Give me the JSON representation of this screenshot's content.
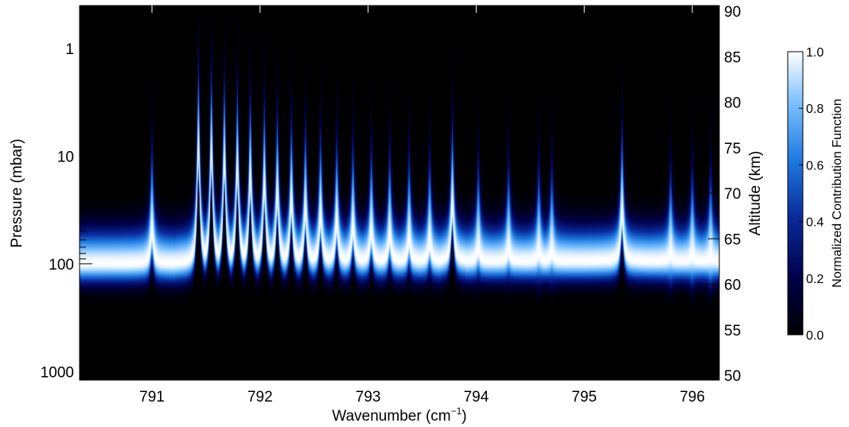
{
  "chart_data": {
    "type": "heatmap",
    "xlabel_main": "Wavenumber (cm",
    "xlabel_sup": "−1",
    "xlabel_close": ")",
    "ylabel_left": "Pressure (mbar)",
    "ylabel_right": "Altitude (km)",
    "colorbar_label": "Normalized Contribution Function",
    "xlim": [
      790.33,
      796.25
    ],
    "x_ticks": [
      "791",
      "792",
      "793",
      "794",
      "795",
      "796"
    ],
    "x_tick_values": [
      791,
      792,
      793,
      794,
      795,
      796
    ],
    "pressure_ticks": [
      "1",
      "10",
      "100",
      "1000"
    ],
    "pressure_tick_values": [
      1,
      10,
      100,
      1000
    ],
    "pressure_scale": "log",
    "pressure_range": [
      0.4,
      1200
    ],
    "altitude_ticks": [
      "90",
      "85",
      "80",
      "75",
      "70",
      "65",
      "60",
      "55",
      "50"
    ],
    "altitude_tick_values": [
      90,
      85,
      80,
      75,
      70,
      65,
      60,
      55,
      50
    ],
    "colorbar_ticks": [
      "1.0",
      "0.8",
      "0.6",
      "0.4",
      "0.2",
      "0.0"
    ],
    "colorbar_tick_values": [
      1.0,
      0.8,
      0.6,
      0.4,
      0.2,
      0.0
    ],
    "colormap": [
      "#000000",
      "#00004a",
      "#0a2c9c",
      "#1e7be0",
      "#7cc0ff",
      "#ffffff"
    ],
    "background_peak_pressure": 95,
    "spectral_lines": [
      {
        "x": 791.0,
        "peak_pressure": 50
      },
      {
        "x": 791.43,
        "peak_pressure": 9
      },
      {
        "x": 791.55,
        "peak_pressure": 10
      },
      {
        "x": 791.67,
        "peak_pressure": 12
      },
      {
        "x": 791.79,
        "peak_pressure": 14
      },
      {
        "x": 791.91,
        "peak_pressure": 17
      },
      {
        "x": 792.04,
        "peak_pressure": 20
      },
      {
        "x": 792.16,
        "peak_pressure": 24
      },
      {
        "x": 792.29,
        "peak_pressure": 28
      },
      {
        "x": 792.42,
        "peak_pressure": 33
      },
      {
        "x": 792.56,
        "peak_pressure": 38
      },
      {
        "x": 792.71,
        "peak_pressure": 43
      },
      {
        "x": 792.86,
        "peak_pressure": 48
      },
      {
        "x": 793.03,
        "peak_pressure": 53
      },
      {
        "x": 793.2,
        "peak_pressure": 58
      },
      {
        "x": 793.38,
        "peak_pressure": 62
      },
      {
        "x": 793.57,
        "peak_pressure": 66
      },
      {
        "x": 793.78,
        "peak_pressure": 30
      },
      {
        "x": 794.02,
        "peak_pressure": 75
      },
      {
        "x": 794.3,
        "peak_pressure": 78
      },
      {
        "x": 794.58,
        "peak_pressure": 82
      },
      {
        "x": 794.7,
        "peak_pressure": 82
      },
      {
        "x": 795.35,
        "peak_pressure": 35
      },
      {
        "x": 795.8,
        "peak_pressure": 86
      },
      {
        "x": 796.0,
        "peak_pressure": 88
      },
      {
        "x": 796.17,
        "peak_pressure": 90
      }
    ]
  }
}
